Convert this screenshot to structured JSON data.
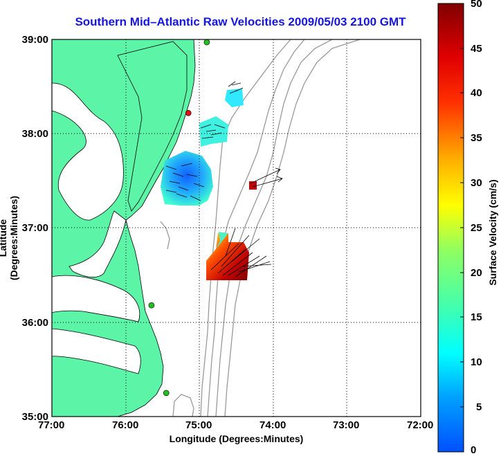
{
  "title": "Southern Mid–Atlantic Raw Velocities 2009/05/03 2100 GMT",
  "map": {
    "xlabel": "Longitude (Degrees:Minutes)",
    "ylabel": "Latitude (Degrees:Minutes)",
    "x_ticks": [
      "77:00",
      "76:00",
      "75:00",
      "74:00",
      "73:00",
      "72:00"
    ],
    "y_ticks": [
      "39:00",
      "38:00",
      "37:00",
      "36:00",
      "35:00"
    ],
    "lon_range": [
      -77,
      -72
    ],
    "lat_range": [
      35,
      39
    ],
    "grid": true,
    "land_color": "#5cf5a8",
    "bathymetry_color": "#999999"
  },
  "colorbar": {
    "label": "Surface Velocity (cm/s)",
    "ticks": [
      "50",
      "45",
      "40",
      "35",
      "30",
      "25",
      "20",
      "15",
      "10",
      "5",
      "0"
    ],
    "range": [
      0,
      50
    ],
    "colormap": "jet"
  },
  "stations": [
    {
      "lon": -74.9,
      "lat": 38.97,
      "color": "#20c020"
    },
    {
      "lon": -75.15,
      "lat": 38.22,
      "color": "#e01010"
    },
    {
      "lon": -75.65,
      "lat": 36.18,
      "color": "#20c020"
    },
    {
      "lon": -75.45,
      "lat": 35.25,
      "color": "#20c020"
    }
  ]
}
